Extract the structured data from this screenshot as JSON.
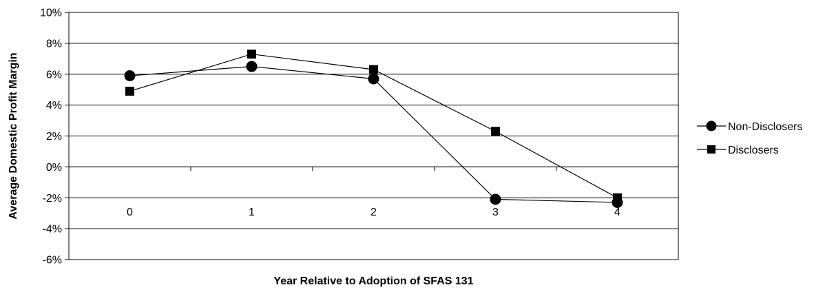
{
  "chart_data": {
    "type": "line",
    "title": "",
    "xlabel": "Year Relative to Adoption of SFAS 131",
    "ylabel": "Average Domestic Profit Margin",
    "categories": [
      "0",
      "1",
      "2",
      "3",
      "4"
    ],
    "ylim": [
      -6,
      10
    ],
    "yticks": [
      "10%",
      "8%",
      "6%",
      "4%",
      "2%",
      "0%",
      "-2%",
      "-4%",
      "-6%"
    ],
    "ytick_values": [
      10,
      8,
      6,
      4,
      2,
      0,
      -2,
      -4,
      -6
    ],
    "grid": true,
    "legend_position": "right",
    "series": [
      {
        "name": "Non-Disclosers",
        "marker": "circle",
        "color": "#000000",
        "values": [
          5.9,
          6.5,
          5.7,
          -2.1,
          -2.3
        ]
      },
      {
        "name": "Disclosers",
        "marker": "square",
        "color": "#000000",
        "values": [
          4.9,
          7.3,
          6.3,
          2.3,
          -2.0
        ]
      }
    ]
  }
}
